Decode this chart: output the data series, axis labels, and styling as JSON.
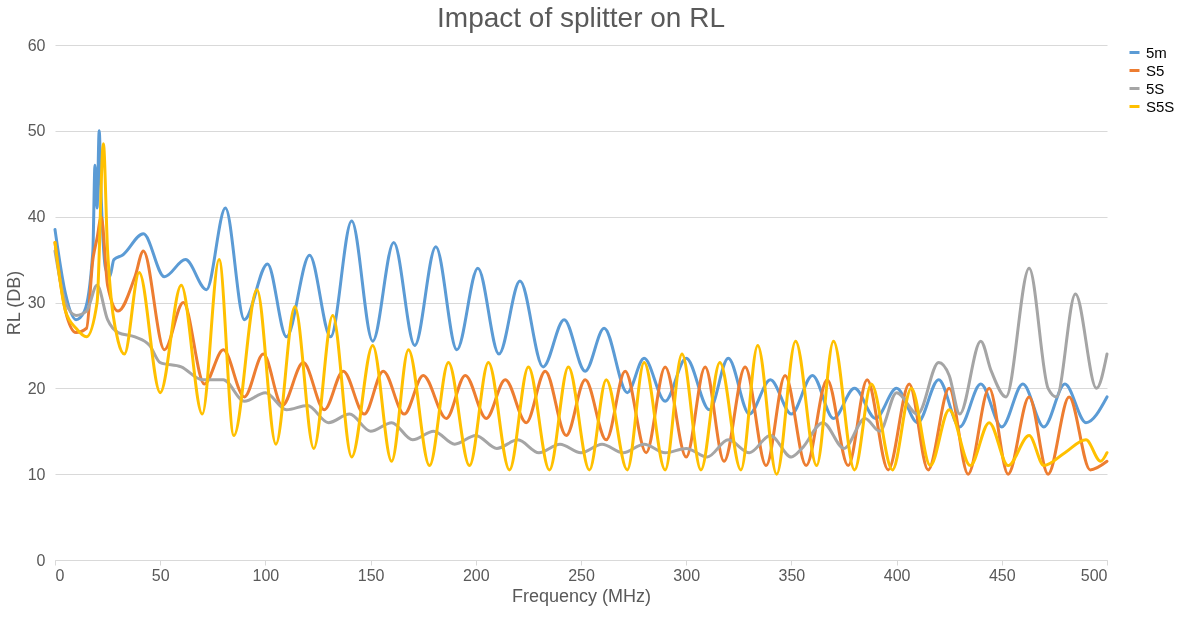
{
  "chart_data": {
    "type": "line",
    "title": "Impact of splitter on RL",
    "xlabel": "Frequency (MHz)",
    "ylabel": "RL (DB)",
    "xlim": [
      0,
      500
    ],
    "xticks": [
      0,
      50,
      100,
      150,
      200,
      250,
      300,
      350,
      400,
      450,
      500
    ],
    "ylim": [
      0,
      60
    ],
    "yticks": [
      0,
      10,
      20,
      30,
      40,
      50,
      60
    ],
    "grid": "y",
    "legend": "right",
    "marker": "none",
    "line_style": "solid",
    "series": [
      {
        "name": "5m",
        "color": "#5b9bd5",
        "x": [
          0,
          5,
          10,
          14,
          18,
          19,
          20,
          21,
          22,
          24,
          26,
          28,
          32,
          42,
          52,
          62,
          72,
          81,
          90,
          101,
          110,
          121,
          131,
          141,
          151,
          161,
          171,
          181,
          191,
          201,
          211,
          221,
          232,
          242,
          252,
          261,
          272,
          280,
          290,
          300,
          311,
          320,
          330,
          340,
          350,
          360,
          370,
          380,
          390,
          400,
          410,
          420,
          430,
          440,
          450,
          460,
          470,
          480,
          490,
          500
        ],
        "values": [
          38.5,
          31,
          28,
          29,
          36,
          46,
          41,
          50,
          42,
          34,
          33,
          35,
          35.5,
          38,
          33,
          35,
          31.5,
          41,
          28,
          34.5,
          26,
          35.5,
          26,
          39.5,
          25.5,
          37,
          25,
          36.5,
          24.5,
          34,
          24,
          32.5,
          22.5,
          28,
          22,
          27,
          19.5,
          23.5,
          18.5,
          23.5,
          17.5,
          23.5,
          17,
          21,
          17,
          21.5,
          16.5,
          20,
          16.5,
          20,
          16,
          21,
          15.5,
          20.5,
          15.5,
          20.5,
          15.5,
          20.5,
          16,
          19
        ]
      },
      {
        "name": "S5",
        "color": "#ed7d31",
        "x": [
          0,
          5,
          10,
          15,
          18,
          20,
          22,
          25,
          30,
          38,
          42,
          52,
          61,
          71,
          80,
          90,
          99,
          108,
          118,
          128,
          137,
          147,
          156,
          166,
          175,
          186,
          195,
          205,
          214,
          224,
          233,
          243,
          252,
          262,
          271,
          281,
          290,
          300,
          309,
          318,
          328,
          338,
          347,
          357,
          367,
          377,
          386,
          396,
          406,
          415,
          425,
          434,
          444,
          453,
          463,
          472,
          482,
          492,
          500
        ],
        "values": [
          37,
          29,
          26.5,
          27,
          35,
          37.5,
          40,
          32,
          29,
          33,
          36,
          24.5,
          30,
          20.5,
          24.5,
          19,
          24,
          18,
          23,
          17.5,
          22,
          17,
          22,
          17,
          21.5,
          16.5,
          21.5,
          16.5,
          21,
          16,
          22,
          14.5,
          21,
          14,
          22,
          12.5,
          22.5,
          12,
          22.5,
          11.5,
          22.5,
          11,
          21.5,
          11,
          21,
          11,
          21,
          10.5,
          20.5,
          10.5,
          20,
          10,
          20,
          10,
          19,
          10,
          19,
          10.5,
          11.5
        ]
      },
      {
        "name": "5S",
        "color": "#a5a5a5",
        "x": [
          0,
          5,
          10,
          15,
          20,
          25,
          30,
          38,
          45,
          50,
          60,
          70,
          80,
          90,
          100,
          110,
          120,
          130,
          140,
          150,
          160,
          170,
          180,
          190,
          200,
          210,
          220,
          230,
          240,
          250,
          260,
          270,
          280,
          290,
          300,
          310,
          320,
          330,
          340,
          350,
          355,
          365,
          375,
          385,
          392,
          400,
          410,
          420,
          425,
          430,
          440,
          445,
          452,
          463,
          472,
          476,
          485,
          495,
          500
        ],
        "values": [
          36,
          30,
          28.5,
          29,
          32,
          28,
          26.5,
          26,
          25,
          23,
          22.5,
          21,
          21,
          18.5,
          19.5,
          17.5,
          18,
          16,
          17,
          15,
          16,
          14,
          15,
          13.5,
          14.5,
          13,
          14,
          12.5,
          13.5,
          12.5,
          13.5,
          12.5,
          13.5,
          12.5,
          13,
          12,
          14,
          12.5,
          14.5,
          12,
          13,
          16,
          13,
          16.5,
          15,
          19.5,
          17,
          23,
          21.5,
          17,
          25.5,
          22,
          19,
          34,
          20,
          19,
          31,
          20,
          24
        ]
      },
      {
        "name": "S5S",
        "color": "#ffc000",
        "x": [
          0,
          5,
          10,
          15,
          20,
          23,
          25,
          30,
          33,
          40,
          50,
          60,
          70,
          78,
          85,
          96,
          105,
          114,
          123,
          132,
          141,
          151,
          160,
          168,
          178,
          187,
          197,
          206,
          216,
          225,
          235,
          244,
          254,
          262,
          272,
          280,
          290,
          298,
          307,
          316,
          326,
          334,
          343,
          352,
          362,
          370,
          380,
          388,
          398,
          407,
          416,
          425,
          435,
          444,
          453,
          463,
          470,
          480,
          490,
          497,
          500
        ],
        "values": [
          37,
          29,
          27,
          26,
          30,
          48.5,
          36,
          25.5,
          24,
          33.5,
          19.5,
          32,
          17,
          35,
          14.5,
          31.5,
          13.5,
          29.5,
          13,
          28.5,
          12,
          25,
          11.5,
          24.5,
          11,
          23,
          11,
          23,
          10.5,
          22.5,
          10.5,
          22.5,
          10.5,
          21,
          10.5,
          23,
          10.5,
          24,
          10.5,
          23,
          10.5,
          25,
          10,
          25.5,
          11,
          25.5,
          10.5,
          20.5,
          10.5,
          20,
          11,
          17.5,
          11,
          16,
          11,
          14.5,
          11,
          12.5,
          14,
          11.5,
          12.5
        ]
      }
    ]
  }
}
